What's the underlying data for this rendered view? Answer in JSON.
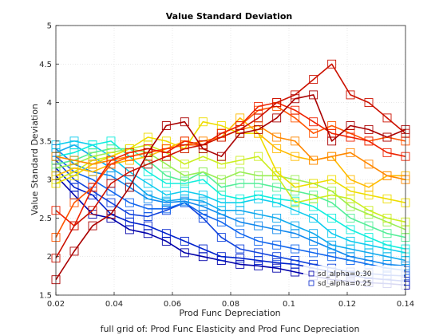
{
  "chart_data": {
    "type": "line",
    "title": "Value Standard Deviation",
    "xlabel": "Prod Func Depreciation",
    "ylabel": "Value Standard Deviation",
    "caption": "full grid of: Prod Func Elasticity and Prod Func Depreciation",
    "xlim": [
      0.02,
      0.14
    ],
    "ylim": [
      1.5,
      5
    ],
    "xticks": [
      0.02,
      0.04,
      0.06,
      0.08,
      0.1,
      0.12,
      0.14
    ],
    "xtick_labels": [
      "0.02",
      "0.04",
      "0.06",
      "0.08",
      "0.1",
      "0.12",
      "0.14"
    ],
    "yticks": [
      1.5,
      2,
      2.5,
      3,
      3.5,
      4,
      4.5,
      5
    ],
    "ytick_labels": [
      "1.5",
      "2",
      "2.5",
      "3",
      "3.5",
      "4",
      "4.5",
      "5"
    ],
    "grid": true,
    "marker": "square",
    "x": [
      0.02,
      0.0263,
      0.0326,
      0.0389,
      0.0453,
      0.0516,
      0.0579,
      0.0642,
      0.0705,
      0.0768,
      0.0832,
      0.0895,
      0.0958,
      0.1021,
      0.1084,
      0.1147,
      0.1211,
      0.1274,
      0.1337,
      0.14
    ],
    "legend": {
      "placement": "bottom-right",
      "entries": [
        "sd_alpha=0.30",
        "sd_alpha=0.25"
      ]
    },
    "series": [
      {
        "color": "#0000aa",
        "values": [
          3.05,
          2.8,
          2.55,
          2.5,
          2.35,
          2.3,
          2.2,
          2.05,
          2.0,
          1.95,
          1.9,
          1.88,
          1.85,
          1.8,
          1.75,
          1.7,
          1.68,
          1.66,
          1.65,
          1.63
        ]
      },
      {
        "color": "#0022cc",
        "values": [
          3.15,
          2.9,
          2.8,
          2.55,
          2.45,
          2.4,
          2.3,
          2.2,
          2.1,
          2.0,
          1.98,
          1.95,
          1.92,
          1.9,
          1.85,
          1.8,
          1.76,
          1.72,
          1.7,
          1.68
        ]
      },
      {
        "color": "#1144dd",
        "values": [
          3.25,
          3.0,
          2.85,
          2.7,
          2.55,
          2.52,
          2.6,
          2.7,
          2.5,
          2.25,
          2.1,
          2.05,
          2.0,
          1.95,
          1.9,
          1.85,
          1.8,
          1.78,
          1.76,
          1.75
        ]
      },
      {
        "color": "#1166ee",
        "values": [
          3.3,
          3.1,
          3.0,
          2.85,
          2.7,
          2.62,
          2.62,
          2.7,
          2.55,
          2.45,
          2.3,
          2.2,
          2.15,
          2.1,
          2.05,
          2.0,
          1.95,
          1.9,
          1.85,
          1.82
        ]
      },
      {
        "color": "#1188ee",
        "values": [
          3.4,
          3.2,
          3.1,
          3.05,
          2.9,
          2.75,
          2.7,
          2.72,
          2.65,
          2.55,
          2.45,
          2.4,
          2.35,
          2.3,
          2.2,
          2.1,
          2.0,
          1.95,
          1.9,
          1.88
        ]
      },
      {
        "color": "#11aaee",
        "values": [
          3.35,
          3.45,
          3.3,
          3.15,
          3.0,
          2.8,
          2.72,
          2.75,
          2.72,
          2.6,
          2.6,
          2.55,
          2.5,
          2.4,
          2.3,
          2.15,
          2.1,
          2.05,
          2.0,
          1.95
        ]
      },
      {
        "color": "#11ccee",
        "values": [
          3.45,
          3.5,
          3.45,
          3.3,
          3.1,
          2.95,
          2.8,
          2.85,
          2.8,
          2.7,
          2.7,
          2.75,
          2.7,
          2.6,
          2.5,
          2.3,
          2.2,
          2.15,
          2.1,
          2.05
        ]
      },
      {
        "color": "#11eedd",
        "values": [
          3.3,
          3.35,
          3.45,
          3.5,
          3.3,
          3.1,
          2.95,
          2.95,
          3.0,
          2.8,
          2.75,
          2.8,
          2.75,
          2.72,
          2.65,
          2.5,
          2.35,
          2.25,
          2.15,
          2.1
        ]
      },
      {
        "color": "#55ee99",
        "values": [
          3.2,
          3.25,
          3.35,
          3.4,
          3.4,
          3.25,
          3.05,
          2.98,
          3.1,
          2.9,
          2.95,
          2.95,
          2.9,
          2.85,
          2.8,
          2.7,
          2.5,
          2.4,
          2.3,
          2.25
        ]
      },
      {
        "color": "#99ee55",
        "values": [
          3.15,
          3.2,
          3.3,
          3.35,
          3.4,
          3.35,
          3.2,
          3.05,
          3.1,
          3.0,
          3.1,
          3.05,
          3.05,
          3.0,
          2.95,
          2.85,
          2.65,
          2.55,
          2.45,
          2.35
        ]
      },
      {
        "color": "#ccee22",
        "values": [
          3.0,
          3.1,
          3.25,
          3.3,
          3.4,
          3.45,
          3.35,
          3.2,
          3.3,
          3.2,
          3.25,
          3.3,
          3.05,
          2.7,
          2.75,
          2.8,
          2.75,
          2.6,
          2.5,
          2.45
        ]
      },
      {
        "color": "#eedd00",
        "values": [
          2.95,
          3.05,
          3.2,
          3.3,
          3.4,
          3.55,
          3.5,
          3.4,
          3.75,
          3.7,
          3.6,
          3.6,
          3.1,
          2.9,
          2.95,
          3.0,
          2.85,
          2.8,
          2.75,
          2.7
        ]
      },
      {
        "color": "#ffbb00",
        "values": [
          3.05,
          3.15,
          3.1,
          3.2,
          3.25,
          3.3,
          3.4,
          3.5,
          3.45,
          3.55,
          3.8,
          3.6,
          3.4,
          3.3,
          3.25,
          3.3,
          3.0,
          2.9,
          3.05,
          3.05
        ]
      },
      {
        "color": "#ff8800",
        "values": [
          3.3,
          3.25,
          3.2,
          3.25,
          3.3,
          3.35,
          3.4,
          3.45,
          3.5,
          3.55,
          3.65,
          3.7,
          3.55,
          3.5,
          3.25,
          3.3,
          3.35,
          3.2,
          3.05,
          3.0
        ]
      },
      {
        "color": "#ff5500",
        "values": [
          2.25,
          2.7,
          2.9,
          3.2,
          3.3,
          3.35,
          3.4,
          3.45,
          3.45,
          3.6,
          3.7,
          3.9,
          3.95,
          3.8,
          3.6,
          3.7,
          3.6,
          3.5,
          3.55,
          3.5
        ]
      },
      {
        "color": "#ee2200",
        "values": [
          2.6,
          2.4,
          2.9,
          3.25,
          3.35,
          3.4,
          3.35,
          3.5,
          3.45,
          3.6,
          3.7,
          3.95,
          4.0,
          3.9,
          3.75,
          3.6,
          3.55,
          3.5,
          3.35,
          3.3
        ]
      },
      {
        "color": "#cc1100",
        "values": [
          1.98,
          2.4,
          2.6,
          2.95,
          3.1,
          3.2,
          3.3,
          3.4,
          3.45,
          3.55,
          3.65,
          3.8,
          4.0,
          4.1,
          4.3,
          4.5,
          4.1,
          4.0,
          3.8,
          3.6
        ]
      },
      {
        "color": "#aa0000",
        "values": [
          1.7,
          2.07,
          2.4,
          2.55,
          2.9,
          3.35,
          3.7,
          3.75,
          3.4,
          3.3,
          3.6,
          3.65,
          3.8,
          4.05,
          4.1,
          3.5,
          3.7,
          3.65,
          3.55,
          3.65
        ]
      }
    ]
  }
}
